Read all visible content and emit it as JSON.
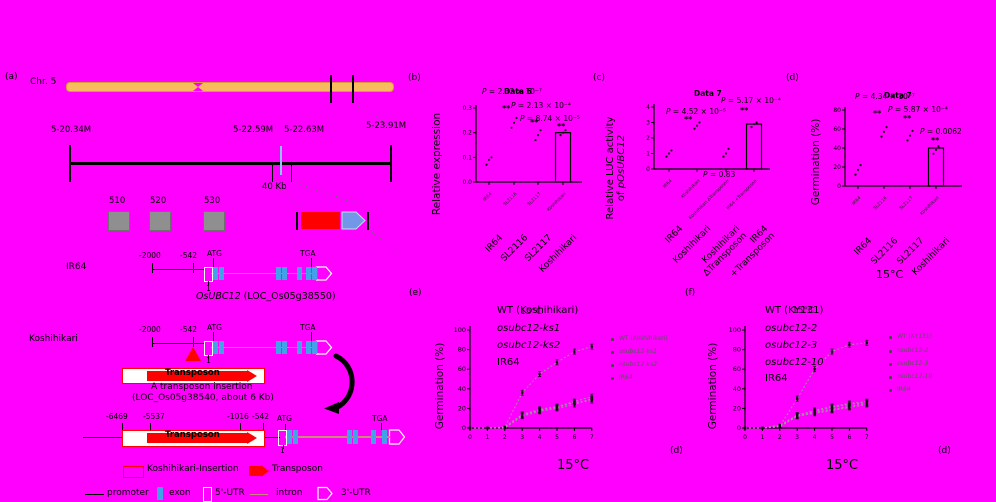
{
  "palette": {
    "background": "#FF00FF",
    "red": "#FF0000",
    "exon_blue": "#41A2E8",
    "chromosome_orange": "#F7BA5E",
    "gene_arrow_blue": "#7296E8",
    "intron_line": "#CC8877"
  },
  "panel_a": {
    "tag": "(a)",
    "chr_label": "Chr. 5",
    "pos_labels": {
      "p1": "5-20.34M",
      "p2": "5-22.59M",
      "p3": "5-22.63M",
      "p4": "5-23.91M"
    },
    "scale": "40 Kb",
    "boxes": {
      "b1": "510",
      "b2": "520",
      "b3": "530"
    },
    "ir64": "IR64",
    "koshihikari": "Koshihikari",
    "m2000": "-2000",
    "m542": "-542",
    "atg": "ATG",
    "tga": "TGA",
    "one": "1",
    "gene_italic": "OsUBC12",
    "gene_rest": " (LOC_Os05g38550)",
    "transposon": "Transposon",
    "ins1": "A transposon insertion",
    "ins2": "(LOC_Os05g38540, about 6 Kb)",
    "b6469": "-6469",
    "b5537": "-5537",
    "b1016": "-1016",
    "b542": "-542",
    "leg_insertion": "Koshihikari-Insertion",
    "leg_transposon": "Transposon",
    "leg_promoter": "promoter",
    "leg_exon": "exon",
    "leg_5utr": "5'-UTR",
    "leg_intron": "intron",
    "leg_3utr": "3'-UTR"
  },
  "chart_data": {
    "b": {
      "type": "bar",
      "tag": "(b)",
      "ylabel": "Relative expression",
      "ymax": 0.3,
      "yticks": [
        "0.0",
        "0.1",
        "0.2",
        "0.3"
      ],
      "categories": [
        "IR64",
        "SL2116",
        "SL2117",
        "Koshihikari"
      ],
      "scatter": [
        [
          0.07,
          0.09,
          0.1
        ],
        [
          0.22,
          0.24,
          0.26
        ],
        [
          0.17,
          0.19,
          0.21
        ],
        [
          0.19,
          0.2,
          0.21
        ]
      ],
      "bars": [
        null,
        null,
        null,
        0.2
      ],
      "pvalues": [
        "P = 2.33 × 10⁻⁷",
        "P = 2.13 × 10⁻⁴",
        "P = 8.74 × 10⁻⁵"
      ],
      "sig": [
        "**",
        "**",
        "**"
      ],
      "overlay": "Data 6"
    },
    "c": {
      "type": "bar",
      "tag": "(c)",
      "ylabel_line1": "Relative LUC activity",
      "ylabel_line2_prefix": "of ",
      "ylabel_line2_gene": "pOsUBC12",
      "ymax": 4,
      "yticks": [
        "0",
        "1",
        "2",
        "3",
        "4"
      ],
      "categories": [
        "IR64",
        "Koshihikari",
        "Koshihikari ΔTransposon",
        "IR64 +Transposon"
      ],
      "categories_lines": [
        [
          "IR64"
        ],
        [
          "Koshihikari"
        ],
        [
          "Koshihikari",
          "ΔTransposon"
        ],
        [
          "IR64",
          "+Transposon"
        ]
      ],
      "scatter": [
        [
          0.8,
          1.0,
          1.2
        ],
        [
          2.6,
          2.8,
          3.0
        ],
        [
          0.8,
          1.0,
          1.3
        ],
        [
          2.7,
          2.9,
          3.0
        ]
      ],
      "bars": [
        null,
        null,
        null,
        2.9
      ],
      "pvalues": [
        "P = 4.52 × 10⁻⁵",
        "P = 5.17 × 10⁻⁴",
        "P = 0.83"
      ],
      "sig": [
        "**",
        "**"
      ],
      "overlay": "Data 7"
    },
    "d": {
      "type": "bar",
      "tag": "(d)",
      "ylabel": "Germination (%)",
      "ymax": 80,
      "yticks": [
        "0",
        "20",
        "40",
        "60",
        "80"
      ],
      "categories": [
        "IR64",
        "SL2116",
        "SL2117",
        "Koshihikari"
      ],
      "scatter": [
        [
          12,
          17,
          22
        ],
        [
          52,
          57,
          62
        ],
        [
          48,
          53,
          58
        ],
        [
          34,
          38,
          42
        ]
      ],
      "bars": [
        null,
        null,
        null,
        40
      ],
      "pvalues": [
        "P = 4.34 × 10⁻⁷",
        "P = 5.87 × 10⁻⁴",
        "P = 0.0062"
      ],
      "sig": [
        "**",
        "**",
        "**"
      ],
      "overlay": "Data 7",
      "temp": "15°C"
    },
    "e": {
      "type": "line",
      "tag": "(e)",
      "ylabel": "Germination (%)",
      "yticks": [
        "0",
        "20",
        "40",
        "60",
        "80",
        "100"
      ],
      "xticks": [
        "0",
        "1",
        "2",
        "3",
        "4",
        "5",
        "6",
        "7"
      ],
      "series": [
        {
          "name": "WT (Koshihikari)",
          "italic": false,
          "values": [
            0,
            0,
            1,
            36,
            55,
            67,
            78,
            83
          ]
        },
        {
          "name": "osubc12-ks1",
          "italic": true,
          "values": [
            0,
            0,
            1,
            14,
            19,
            22,
            27,
            32
          ]
        },
        {
          "name": "osubc12-ks2",
          "italic": true,
          "values": [
            0,
            0,
            1,
            13,
            18,
            21,
            26,
            28
          ]
        },
        {
          "name": "IR64",
          "italic": false,
          "values": [
            0,
            0,
            0,
            12,
            17,
            20,
            24,
            30
          ]
        }
      ],
      "temp": "15°C",
      "temp_overlay": "15°C",
      "stray_tag": "(d)"
    },
    "f": {
      "type": "line",
      "tag": "(f)",
      "ylabel": "Germination (%)",
      "yticks": [
        "0",
        "20",
        "40",
        "60",
        "80",
        "100"
      ],
      "xticks": [
        "0",
        "1",
        "2",
        "3",
        "4",
        "5",
        "6",
        "7"
      ],
      "series": [
        {
          "name": "WT (KY131)",
          "italic": false,
          "values": [
            0,
            0,
            2,
            30,
            60,
            78,
            85,
            87
          ]
        },
        {
          "name": "osubc12-2",
          "italic": true,
          "values": [
            0,
            0,
            3,
            13,
            17,
            21,
            24,
            26
          ]
        },
        {
          "name": "osubc12-3",
          "italic": true,
          "values": [
            0,
            0,
            2,
            12,
            16,
            19,
            22,
            25
          ]
        },
        {
          "name": "osubc12-10",
          "italic": true,
          "values": [
            0,
            0,
            2,
            13,
            18,
            22,
            25,
            27
          ]
        },
        {
          "name": "IR64",
          "italic": false,
          "values": [
            0,
            0,
            1,
            12,
            15,
            18,
            21,
            24
          ]
        }
      ],
      "temp": "15°C",
      "temp_overlay": "15°C",
      "stray_tag": "(d)"
    }
  }
}
